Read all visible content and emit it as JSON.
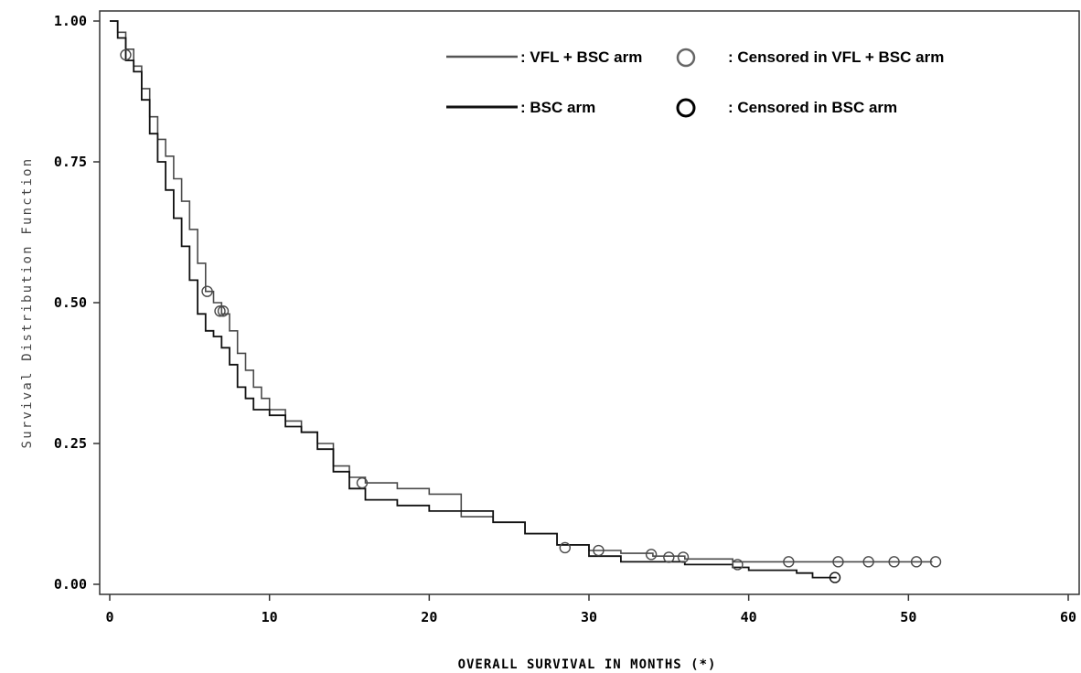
{
  "chart_data": {
    "type": "line",
    "subtype": "kaplan-meier step curves",
    "title": "",
    "xlabel": "OVERALL SURVIVAL IN MONTHS (*)",
    "ylabel": "Survival Distribution Function",
    "xlim": [
      0,
      60
    ],
    "ylim": [
      0,
      1
    ],
    "x_ticks": [
      0,
      10,
      20,
      30,
      40,
      50,
      60
    ],
    "x_tick_labels": [
      "0",
      "10",
      "20",
      "30",
      "40",
      "50",
      "60"
    ],
    "y_ticks": [
      0,
      0.25,
      0.5,
      0.75,
      1.0
    ],
    "y_tick_labels": [
      "0.00",
      "0.25",
      "0.50",
      "0.75",
      "1.00"
    ],
    "grid": false,
    "legend_position": "top-right",
    "legend": [
      {
        "series": "VFL + BSC arm",
        "line_label": ": VFL + BSC arm",
        "marker_label": ": Censored in VFL + BSC arm"
      },
      {
        "series": "BSC arm",
        "line_label": ": BSC arm",
        "marker_label": ": Censored in BSC arm"
      }
    ],
    "series": [
      {
        "name": "VFL + BSC arm",
        "color": "#4a4a4a",
        "points": [
          [
            0,
            1.0
          ],
          [
            0.5,
            0.98
          ],
          [
            1,
            0.95
          ],
          [
            1.5,
            0.92
          ],
          [
            2,
            0.88
          ],
          [
            2.5,
            0.83
          ],
          [
            3,
            0.79
          ],
          [
            3.5,
            0.76
          ],
          [
            4,
            0.72
          ],
          [
            4.5,
            0.68
          ],
          [
            5,
            0.63
          ],
          [
            5.5,
            0.57
          ],
          [
            6,
            0.52
          ],
          [
            6.5,
            0.5
          ],
          [
            7,
            0.48
          ],
          [
            7.5,
            0.45
          ],
          [
            8,
            0.41
          ],
          [
            8.5,
            0.38
          ],
          [
            9,
            0.35
          ],
          [
            9.5,
            0.33
          ],
          [
            10,
            0.31
          ],
          [
            11,
            0.29
          ],
          [
            12,
            0.27
          ],
          [
            13,
            0.25
          ],
          [
            14,
            0.21
          ],
          [
            15,
            0.19
          ],
          [
            16,
            0.18
          ],
          [
            18,
            0.17
          ],
          [
            20,
            0.16
          ],
          [
            22,
            0.12
          ],
          [
            24,
            0.11
          ],
          [
            26,
            0.09
          ],
          [
            28,
            0.07
          ],
          [
            30,
            0.06
          ],
          [
            32,
            0.055
          ],
          [
            34,
            0.05
          ],
          [
            36,
            0.045
          ],
          [
            39,
            0.04
          ],
          [
            42,
            0.04
          ],
          [
            45,
            0.04
          ],
          [
            50,
            0.04
          ],
          [
            51.5,
            0.04
          ]
        ],
        "censored": [
          [
            1,
            0.94
          ],
          [
            6.1,
            0.52
          ],
          [
            6.9,
            0.485
          ],
          [
            7.1,
            0.485
          ],
          [
            15.8,
            0.18
          ],
          [
            28.5,
            0.065
          ],
          [
            30.6,
            0.06
          ],
          [
            33.9,
            0.053
          ],
          [
            35,
            0.048
          ],
          [
            35.9,
            0.048
          ],
          [
            39.3,
            0.035
          ],
          [
            42.5,
            0.04
          ],
          [
            45.6,
            0.04
          ],
          [
            47.5,
            0.04
          ],
          [
            49.1,
            0.04
          ],
          [
            50.5,
            0.04
          ],
          [
            51.7,
            0.04
          ]
        ]
      },
      {
        "name": "BSC arm",
        "color": "#111111",
        "points": [
          [
            0,
            1.0
          ],
          [
            0.5,
            0.97
          ],
          [
            1,
            0.93
          ],
          [
            1.5,
            0.91
          ],
          [
            2,
            0.86
          ],
          [
            2.5,
            0.8
          ],
          [
            3,
            0.75
          ],
          [
            3.5,
            0.7
          ],
          [
            4,
            0.65
          ],
          [
            4.5,
            0.6
          ],
          [
            5,
            0.54
          ],
          [
            5.5,
            0.48
          ],
          [
            6,
            0.45
          ],
          [
            6.5,
            0.44
          ],
          [
            7,
            0.42
          ],
          [
            7.5,
            0.39
          ],
          [
            8,
            0.35
          ],
          [
            8.5,
            0.33
          ],
          [
            9,
            0.31
          ],
          [
            10,
            0.3
          ],
          [
            11,
            0.28
          ],
          [
            12,
            0.27
          ],
          [
            13,
            0.24
          ],
          [
            14,
            0.2
          ],
          [
            15,
            0.17
          ],
          [
            16,
            0.15
          ],
          [
            18,
            0.14
          ],
          [
            20,
            0.13
          ],
          [
            22,
            0.13
          ],
          [
            24,
            0.11
          ],
          [
            26,
            0.09
          ],
          [
            28,
            0.07
          ],
          [
            30,
            0.05
          ],
          [
            32,
            0.04
          ],
          [
            34,
            0.04
          ],
          [
            36,
            0.035
          ],
          [
            39,
            0.03
          ],
          [
            40,
            0.025
          ],
          [
            43,
            0.02
          ],
          [
            44,
            0.012
          ],
          [
            45.5,
            0.012
          ]
        ],
        "censored": [
          [
            45.4,
            0.012
          ]
        ]
      }
    ]
  }
}
